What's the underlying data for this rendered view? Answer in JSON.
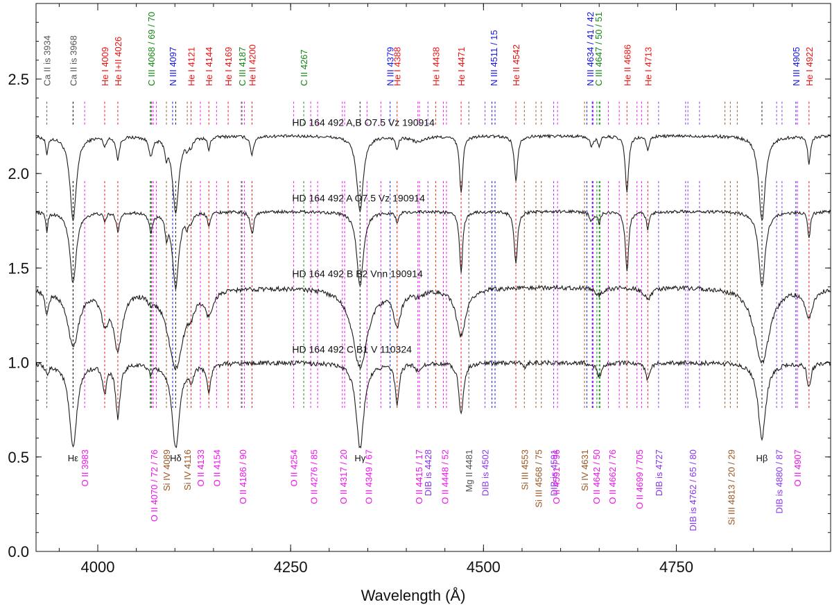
{
  "chart_data": {
    "type": "line",
    "xlabel": "Wavelength (Å)",
    "ylabel": "",
    "xlim": [
      3920,
      4950
    ],
    "ylim": [
      0.0,
      2.9
    ],
    "x_ticks": [
      4000,
      4250,
      4500,
      4750
    ],
    "y_ticks": [
      0.0,
      0.5,
      1.0,
      1.5,
      2.0,
      2.5
    ],
    "y_tick_labels": [
      "0.0",
      "0.5",
      "1.0",
      "1.5",
      "2.0",
      "2.5"
    ],
    "colors": {
      "red": "#ee1111",
      "blue": "#1111ee",
      "green": "#118811",
      "gray": "#555555",
      "magenta": "#ee11ee",
      "purple": "#8833ee",
      "brown": "#995522",
      "black": "#111111",
      "spectrum": "#1a1a1a"
    },
    "spectra": [
      {
        "label": "HD 164 492 A,B   O7.5 Vz 190914",
        "continuum": 2.2,
        "noise": 0.008,
        "scale": 1.0,
        "label_wl": 4252,
        "label_y": 2.27,
        "lines": [
          [
            3934,
            0.1,
            1.5
          ],
          [
            3968,
            0.45,
            5
          ],
          [
            4009,
            0.05,
            2
          ],
          [
            4026,
            0.12,
            2.5
          ],
          [
            4069,
            0.1,
            3
          ],
          [
            4089,
            0.08,
            2
          ],
          [
            4101,
            0.4,
            5
          ],
          [
            4116,
            0.05,
            2
          ],
          [
            4121,
            0.04,
            2
          ],
          [
            4144,
            0.07,
            2
          ],
          [
            4200,
            0.1,
            2.5
          ],
          [
            4340,
            0.4,
            5
          ],
          [
            4388,
            0.07,
            2
          ],
          [
            4471,
            0.3,
            2.5
          ],
          [
            4542,
            0.24,
            2.5
          ],
          [
            4686,
            0.3,
            2.5
          ],
          [
            4713,
            0.08,
            2
          ],
          [
            4640,
            0.05,
            3
          ],
          [
            4650,
            0.05,
            2
          ],
          [
            4861,
            0.45,
            5
          ],
          [
            4922,
            0.15,
            2
          ],
          [
            4415,
            0.03,
            10
          ]
        ]
      },
      {
        "label": "HD 164 492 A   O7.5 Vz 190914",
        "continuum": 1.8,
        "noise": 0.008,
        "scale": 1.0,
        "label_wl": 4252,
        "label_y": 1.87,
        "lines": [
          [
            3934,
            0.1,
            1.5
          ],
          [
            3968,
            0.38,
            5
          ],
          [
            4009,
            0.05,
            2
          ],
          [
            4026,
            0.1,
            2.5
          ],
          [
            4069,
            0.1,
            3
          ],
          [
            4089,
            0.1,
            2
          ],
          [
            4101,
            0.4,
            5
          ],
          [
            4116,
            0.06,
            2
          ],
          [
            4121,
            0.04,
            2
          ],
          [
            4144,
            0.07,
            2
          ],
          [
            4200,
            0.12,
            2.5
          ],
          [
            4340,
            0.4,
            5
          ],
          [
            4388,
            0.06,
            2
          ],
          [
            4471,
            0.32,
            2.5
          ],
          [
            4542,
            0.28,
            2.5
          ],
          [
            4686,
            0.32,
            2.5
          ],
          [
            4713,
            0.1,
            2
          ],
          [
            4640,
            0.05,
            3
          ],
          [
            4650,
            0.06,
            2
          ],
          [
            4861,
            0.4,
            5
          ],
          [
            4922,
            0.14,
            2
          ]
        ]
      },
      {
        "label": "HD 164 492 B   B2 Vnn 190914",
        "continuum": 1.4,
        "noise": 0.012,
        "scale": 1.0,
        "label_wl": 4252,
        "label_y": 1.47,
        "lines": [
          [
            3934,
            0.12,
            3
          ],
          [
            3968,
            0.3,
            9
          ],
          [
            4009,
            0.15,
            6
          ],
          [
            4026,
            0.3,
            7
          ],
          [
            4069,
            0.04,
            5
          ],
          [
            4101,
            0.42,
            12
          ],
          [
            4121,
            0.06,
            5
          ],
          [
            4144,
            0.12,
            6
          ],
          [
            4340,
            0.42,
            12
          ],
          [
            4388,
            0.18,
            6
          ],
          [
            4415,
            0.03,
            10
          ],
          [
            4471,
            0.25,
            8
          ],
          [
            4650,
            0.04,
            6
          ],
          [
            4713,
            0.06,
            6
          ],
          [
            4861,
            0.4,
            12
          ],
          [
            4922,
            0.15,
            6
          ]
        ]
      },
      {
        "label": "HD 164 492 C   B1 V 110324",
        "continuum": 1.0,
        "noise": 0.012,
        "scale": 1.0,
        "label_wl": 4252,
        "label_y": 1.07,
        "lines": [
          [
            3934,
            0.05,
            3
          ],
          [
            3968,
            0.45,
            6
          ],
          [
            4009,
            0.15,
            3
          ],
          [
            4026,
            0.28,
            3.5
          ],
          [
            4069,
            0.05,
            3
          ],
          [
            4101,
            0.45,
            6
          ],
          [
            4121,
            0.08,
            3
          ],
          [
            4144,
            0.15,
            3
          ],
          [
            4340,
            0.45,
            6
          ],
          [
            4388,
            0.22,
            3
          ],
          [
            4415,
            0.04,
            4
          ],
          [
            4471,
            0.27,
            3.5
          ],
          [
            4553,
            0.03,
            2
          ],
          [
            4650,
            0.07,
            4
          ],
          [
            4713,
            0.09,
            3
          ],
          [
            4861,
            0.4,
            6
          ],
          [
            4922,
            0.13,
            3
          ]
        ]
      }
    ],
    "top_annotations": [
      {
        "wl": 3934,
        "text": "Ca II is 3934",
        "color": "gray"
      },
      {
        "wl": 3968,
        "text": "Ca II is 3968",
        "color": "gray"
      },
      {
        "wl": 4009,
        "text": "He I 4009",
        "color": "red"
      },
      {
        "wl": 4026,
        "text": "He I+II 4026",
        "color": "red"
      },
      {
        "wl": 4069,
        "text": "C III 4068 / 69 / 70",
        "color": "green"
      },
      {
        "wl": 4097,
        "text": "N III 4097",
        "color": "blue"
      },
      {
        "wl": 4121,
        "text": "He I 4121",
        "color": "red"
      },
      {
        "wl": 4144,
        "text": "He I 4144",
        "color": "red"
      },
      {
        "wl": 4169,
        "text": "He I 4169",
        "color": "red"
      },
      {
        "wl": 4187,
        "text": "C III 4187",
        "color": "green"
      },
      {
        "wl": 4200,
        "text": "He II 4200",
        "color": "red"
      },
      {
        "wl": 4267,
        "text": "C II 4267",
        "color": "green"
      },
      {
        "wl": 4379,
        "text": "N III 4379",
        "color": "blue"
      },
      {
        "wl": 4388,
        "text": "He I 4388",
        "color": "red"
      },
      {
        "wl": 4438,
        "text": "He I 4438",
        "color": "red"
      },
      {
        "wl": 4471,
        "text": "He I 4471",
        "color": "red"
      },
      {
        "wl": 4513,
        "text": "N III 4511 / 15",
        "color": "blue"
      },
      {
        "wl": 4542,
        "text": "He II 4542",
        "color": "red"
      },
      {
        "wl": 4638,
        "text": "N III 4634 / 41 / 42",
        "color": "blue"
      },
      {
        "wl": 4649,
        "text": "C III 4647 / 50 / 51",
        "color": "green"
      },
      {
        "wl": 4686,
        "text": "He II 4686",
        "color": "red"
      },
      {
        "wl": 4713,
        "text": "He I 4713",
        "color": "red"
      },
      {
        "wl": 4905,
        "text": "N III 4905",
        "color": "blue"
      },
      {
        "wl": 4922,
        "text": "He I 4922",
        "color": "red"
      }
    ],
    "bottom_annotations": [
      {
        "wl": 3968,
        "text": "Hε",
        "color": "black"
      },
      {
        "wl": 3983,
        "text": "O II 3983",
        "color": "magenta"
      },
      {
        "wl": 4073,
        "text": "O II 4070 / 72 / 76",
        "color": "magenta"
      },
      {
        "wl": 4089,
        "text": "Si IV 4089",
        "color": "brown"
      },
      {
        "wl": 4101,
        "text": "Hδ",
        "color": "black"
      },
      {
        "wl": 4116,
        "text": "Si IV 4116",
        "color": "brown"
      },
      {
        "wl": 4133,
        "text": "O II 4133",
        "color": "magenta"
      },
      {
        "wl": 4154,
        "text": "O II 4154",
        "color": "magenta"
      },
      {
        "wl": 4188,
        "text": "O II 4186 / 90",
        "color": "magenta"
      },
      {
        "wl": 4254,
        "text": "O II 4254",
        "color": "magenta"
      },
      {
        "wl": 4280,
        "text": "O II 4276 / 85",
        "color": "magenta"
      },
      {
        "wl": 4318,
        "text": "O II 4317 / 20",
        "color": "magenta"
      },
      {
        "wl": 4340,
        "text": "Hγ",
        "color": "black"
      },
      {
        "wl": 4351,
        "text": "O II 4349 / 67",
        "color": "magenta"
      },
      {
        "wl": 4416,
        "text": "O II 4415 / 17",
        "color": "magenta"
      },
      {
        "wl": 4428,
        "text": "DIB is 4428",
        "color": "purple"
      },
      {
        "wl": 4450,
        "text": "O II 4448 / 52",
        "color": "magenta"
      },
      {
        "wl": 4481,
        "text": "Mg II 4481",
        "color": "gray"
      },
      {
        "wl": 4502,
        "text": "DIB is 4502",
        "color": "purple"
      },
      {
        "wl": 4553,
        "text": "Si III 4553",
        "color": "brown"
      },
      {
        "wl": 4571,
        "text": "Si III 4568 / 75",
        "color": "brown"
      },
      {
        "wl": 4591,
        "text": "DIB is 4591",
        "color": "purple"
      },
      {
        "wl": 4594,
        "text": "O II 4591 / 96",
        "color": "magenta"
      },
      {
        "wl": 4631,
        "text": "Si IV 4631",
        "color": "brown"
      },
      {
        "wl": 4646,
        "text": "O II 4642 / 50",
        "color": "magenta"
      },
      {
        "wl": 4667,
        "text": "O II 4662 / 76",
        "color": "magenta"
      },
      {
        "wl": 4702,
        "text": "O II 4699 / 705",
        "color": "magenta"
      },
      {
        "wl": 4727,
        "text": "DIB is 4727",
        "color": "purple"
      },
      {
        "wl": 4771,
        "text": "DIB is 4762 / 65 / 80",
        "color": "purple"
      },
      {
        "wl": 4821,
        "text": "Si III 4813 / 20 / 29",
        "color": "brown"
      },
      {
        "wl": 4861,
        "text": "Hβ",
        "color": "black"
      },
      {
        "wl": 4883,
        "text": "DIB is 4880 / 87",
        "color": "purple"
      },
      {
        "wl": 4907,
        "text": "O II 4907",
        "color": "magenta"
      }
    ],
    "marker_lines": [
      {
        "wl": 3934,
        "color": "gray"
      },
      {
        "wl": 3968,
        "color": "gray"
      },
      {
        "wl": 4009,
        "color": "red"
      },
      {
        "wl": 4026,
        "color": "red"
      },
      {
        "wl": 4068,
        "color": "green"
      },
      {
        "wl": 4069,
        "color": "green"
      },
      {
        "wl": 4070,
        "color": "green"
      },
      {
        "wl": 4097,
        "color": "blue"
      },
      {
        "wl": 4121,
        "color": "red"
      },
      {
        "wl": 4144,
        "color": "red"
      },
      {
        "wl": 4169,
        "color": "red"
      },
      {
        "wl": 4187,
        "color": "green"
      },
      {
        "wl": 4200,
        "color": "red"
      },
      {
        "wl": 4267,
        "color": "green"
      },
      {
        "wl": 4379,
        "color": "blue"
      },
      {
        "wl": 4388,
        "color": "red"
      },
      {
        "wl": 4438,
        "color": "red"
      },
      {
        "wl": 4471,
        "color": "red"
      },
      {
        "wl": 4511,
        "color": "blue"
      },
      {
        "wl": 4515,
        "color": "blue"
      },
      {
        "wl": 4542,
        "color": "red"
      },
      {
        "wl": 4634,
        "color": "blue"
      },
      {
        "wl": 4641,
        "color": "blue"
      },
      {
        "wl": 4642,
        "color": "blue"
      },
      {
        "wl": 4647,
        "color": "green"
      },
      {
        "wl": 4650,
        "color": "green"
      },
      {
        "wl": 4651,
        "color": "green"
      },
      {
        "wl": 4686,
        "color": "red"
      },
      {
        "wl": 4713,
        "color": "red"
      },
      {
        "wl": 4905,
        "color": "blue"
      },
      {
        "wl": 4922,
        "color": "red"
      },
      {
        "wl": 3983,
        "color": "magenta"
      },
      {
        "wl": 4070,
        "color": "magenta"
      },
      {
        "wl": 4072,
        "color": "magenta"
      },
      {
        "wl": 4076,
        "color": "magenta"
      },
      {
        "wl": 4089,
        "color": "brown"
      },
      {
        "wl": 4116,
        "color": "brown"
      },
      {
        "wl": 4133,
        "color": "magenta"
      },
      {
        "wl": 4154,
        "color": "magenta"
      },
      {
        "wl": 4186,
        "color": "magenta"
      },
      {
        "wl": 4190,
        "color": "magenta"
      },
      {
        "wl": 4254,
        "color": "magenta"
      },
      {
        "wl": 4276,
        "color": "magenta"
      },
      {
        "wl": 4285,
        "color": "magenta"
      },
      {
        "wl": 4317,
        "color": "magenta"
      },
      {
        "wl": 4320,
        "color": "magenta"
      },
      {
        "wl": 4349,
        "color": "magenta"
      },
      {
        "wl": 4367,
        "color": "magenta"
      },
      {
        "wl": 4415,
        "color": "magenta"
      },
      {
        "wl": 4417,
        "color": "magenta"
      },
      {
        "wl": 4428,
        "color": "purple"
      },
      {
        "wl": 4448,
        "color": "magenta"
      },
      {
        "wl": 4452,
        "color": "magenta"
      },
      {
        "wl": 4481,
        "color": "gray"
      },
      {
        "wl": 4502,
        "color": "purple"
      },
      {
        "wl": 4553,
        "color": "brown"
      },
      {
        "wl": 4568,
        "color": "brown"
      },
      {
        "wl": 4575,
        "color": "brown"
      },
      {
        "wl": 4591,
        "color": "purple"
      },
      {
        "wl": 4596,
        "color": "magenta"
      },
      {
        "wl": 4631,
        "color": "brown"
      },
      {
        "wl": 4642,
        "color": "magenta"
      },
      {
        "wl": 4662,
        "color": "magenta"
      },
      {
        "wl": 4676,
        "color": "magenta"
      },
      {
        "wl": 4699,
        "color": "magenta"
      },
      {
        "wl": 4705,
        "color": "magenta"
      },
      {
        "wl": 4727,
        "color": "purple"
      },
      {
        "wl": 4762,
        "color": "purple"
      },
      {
        "wl": 4765,
        "color": "purple"
      },
      {
        "wl": 4780,
        "color": "purple"
      },
      {
        "wl": 4813,
        "color": "brown"
      },
      {
        "wl": 4820,
        "color": "brown"
      },
      {
        "wl": 4829,
        "color": "brown"
      },
      {
        "wl": 4880,
        "color": "purple"
      },
      {
        "wl": 4887,
        "color": "purple"
      },
      {
        "wl": 4907,
        "color": "magenta"
      },
      {
        "wl": 3968,
        "color": "black"
      },
      {
        "wl": 4101,
        "color": "black"
      },
      {
        "wl": 4340,
        "color": "black"
      },
      {
        "wl": 4861,
        "color": "black"
      }
    ]
  }
}
